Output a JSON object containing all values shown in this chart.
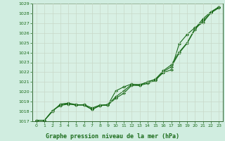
{
  "bg_color": "#d0ede0",
  "plot_bg_color": "#d8f0e4",
  "grid_color": "#c8d8c8",
  "line_color": "#1a6b1a",
  "marker": "D",
  "markersize": 2.0,
  "linewidth": 0.8,
  "ylim": [
    1017,
    1029
  ],
  "xlim": [
    -0.5,
    23.5
  ],
  "yticks": [
    1017,
    1018,
    1019,
    1020,
    1021,
    1022,
    1023,
    1024,
    1025,
    1026,
    1027,
    1028,
    1029
  ],
  "xticks": [
    0,
    1,
    2,
    3,
    4,
    5,
    6,
    7,
    8,
    9,
    10,
    11,
    12,
    13,
    14,
    15,
    16,
    17,
    18,
    19,
    20,
    21,
    22,
    23
  ],
  "line1": [
    1017.1,
    1017.1,
    1018.1,
    1018.6,
    1018.75,
    1018.65,
    1018.65,
    1018.2,
    1018.6,
    1018.65,
    1020.1,
    1020.5,
    1020.8,
    1020.65,
    1021.05,
    1021.25,
    1021.95,
    1022.25,
    1024.9,
    1025.85,
    1026.55,
    1027.05,
    1028.05,
    1028.55
  ],
  "line2": [
    1017.1,
    1017.1,
    1018.05,
    1018.7,
    1018.8,
    1018.65,
    1018.7,
    1018.35,
    1018.65,
    1018.7,
    1019.5,
    1020.1,
    1020.75,
    1020.75,
    1020.95,
    1021.3,
    1022.15,
    1022.75,
    1024.05,
    1025.0,
    1026.45,
    1027.45,
    1028.15,
    1028.65
  ],
  "line3": [
    1017.1,
    1017.1,
    1018.0,
    1018.75,
    1018.85,
    1018.7,
    1018.65,
    1018.2,
    1018.6,
    1018.65,
    1019.35,
    1019.85,
    1020.65,
    1020.65,
    1020.85,
    1021.15,
    1022.05,
    1022.55,
    1023.95,
    1024.95,
    1026.35,
    1027.25,
    1028.05,
    1028.65
  ],
  "xlabel_text": "Graphe pression niveau de la mer (hPa)",
  "tick_fontsize": 4.5,
  "label_fontsize": 6.0,
  "spine_color": "#336633"
}
